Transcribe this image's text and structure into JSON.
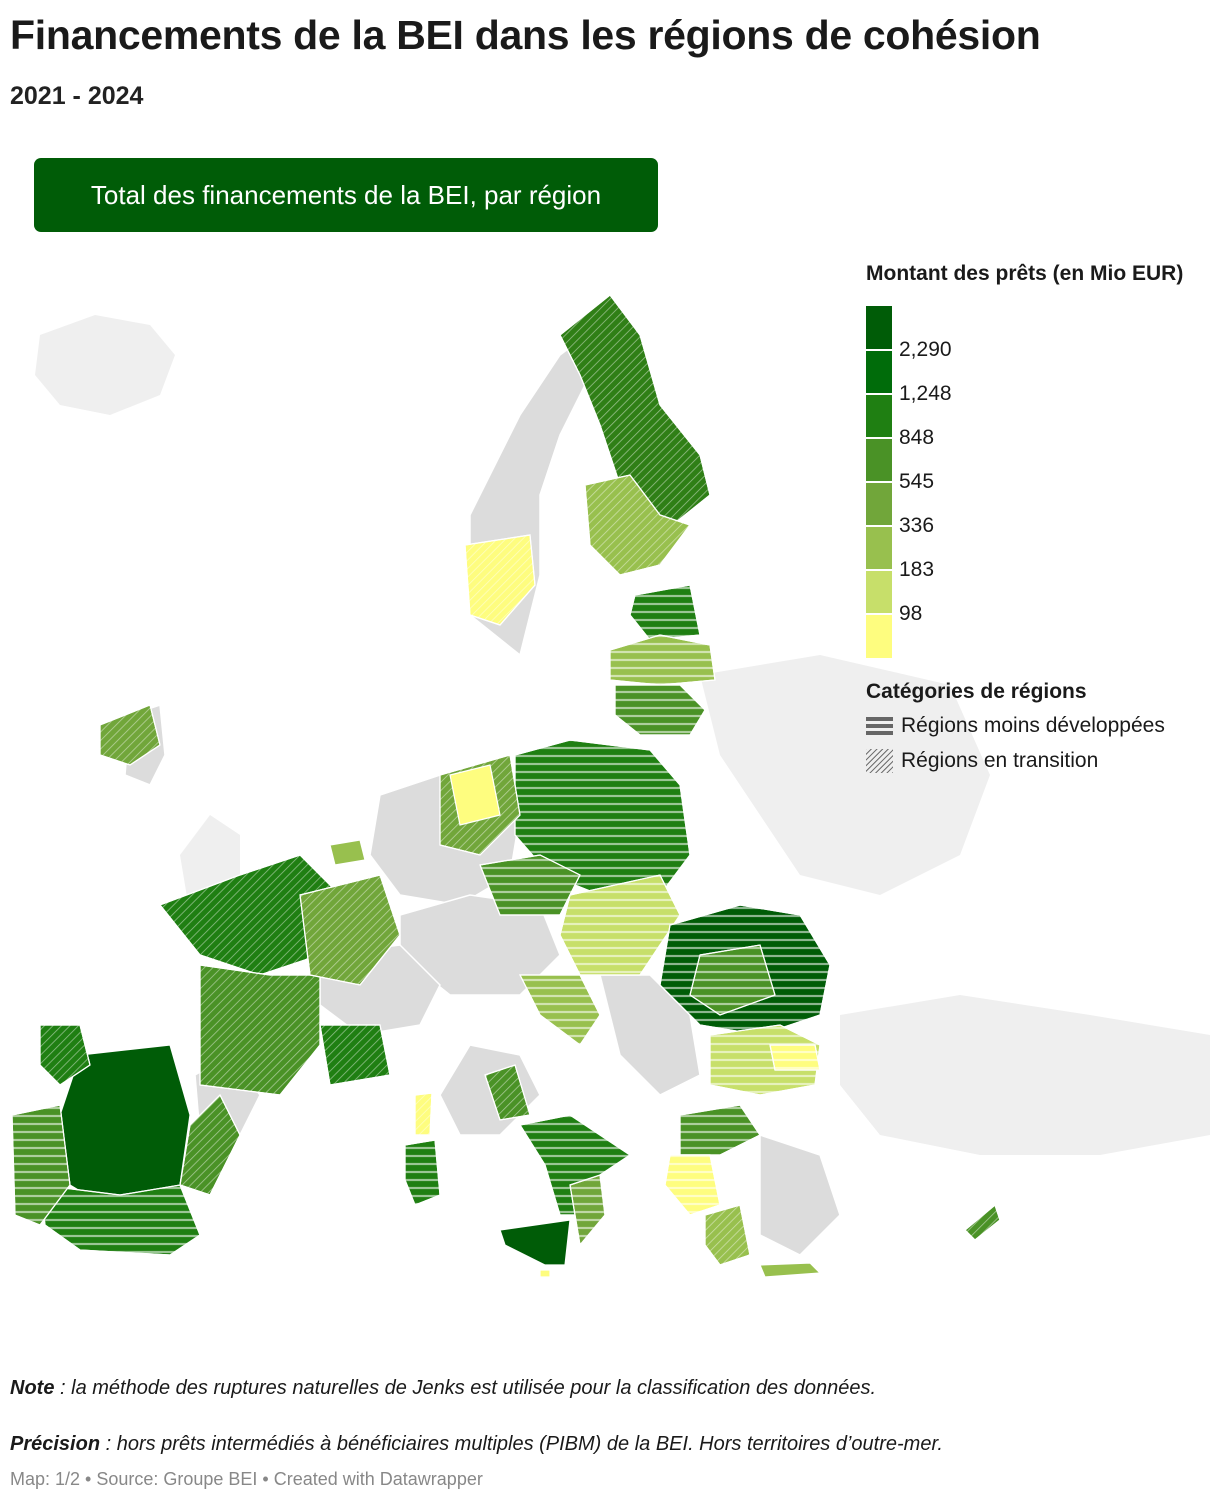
{
  "title": "Financements de la BEI dans les régions de cohésion",
  "subtitle": "2021 - 2024",
  "tab_button": "Total des financements de la BEI, par région",
  "legend": {
    "title": "Montant des prêts (en Mio EUR)",
    "ticks": [
      "2,290",
      "1,248",
      "848",
      "545",
      "336",
      "183",
      "98"
    ],
    "colors": [
      "#005c07",
      "#006c0a",
      "#1f7f12",
      "#4a9226",
      "#71a63a",
      "#98c04e",
      "#c7df6a",
      "#fefd7f"
    ],
    "categories_title": "Catégories de régions",
    "categories": [
      {
        "label": "Régions moins développées",
        "icon": "horizontal-stripes"
      },
      {
        "label": "Régions en transition",
        "icon": "diagonal-hatch"
      }
    ]
  },
  "note_label": "Note",
  "note_text": " : la méthode des ruptures naturelles de Jenks est utilisée pour la classification des données.",
  "precision_label": "Précision",
  "precision_text": " : hors prêts intermédiés à bénéficiaires multiples (PIBM) de la BEI. Hors territoires d’outre-mer.",
  "footer": "Map: 1/2 • Source: Groupe BEI • Created with Datawrapper"
}
